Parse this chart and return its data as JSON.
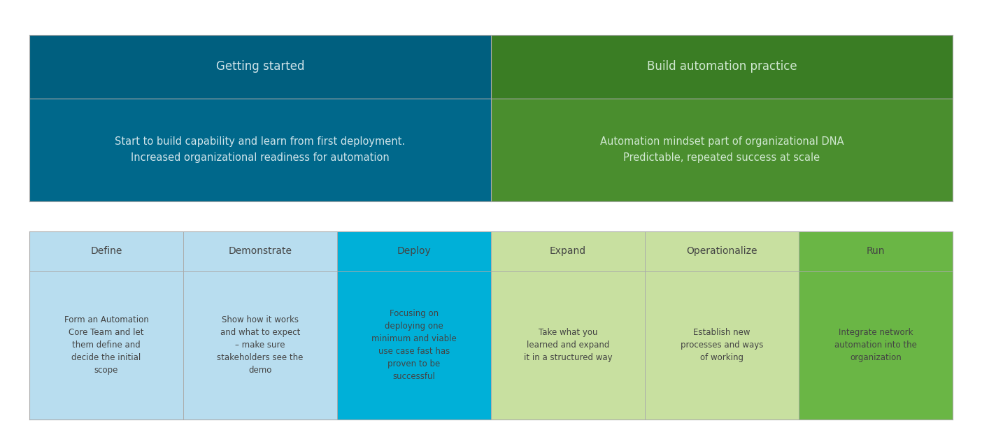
{
  "bg_color": "#ffffff",
  "top_section": {
    "phases": [
      {
        "label": "Getting started",
        "description": "Start to build capability and learn from first deployment.\nIncreased organizational readiness for automation",
        "header_color": "#005f7f",
        "body_color": "#00688b",
        "text_color": "#d0e4ea"
      },
      {
        "label": "Build automation practice",
        "description": "Automation mindset part of organizational DNA\nPredictable, repeated success at scale",
        "header_color": "#3a7d24",
        "body_color": "#4a8e2e",
        "text_color": "#d0e8d0"
      }
    ]
  },
  "bottom_section": {
    "steps": [
      {
        "title": "Define",
        "description": "Form an Automation\nCore Team and let\nthem define and\ndecide the initial\nscope",
        "color": "#b8ddef",
        "title_color": "#444444",
        "desc_color": "#444444"
      },
      {
        "title": "Demonstrate",
        "description": "Show how it works\nand what to expect\n– make sure\nstakeholders see the\ndemo",
        "color": "#b8ddef",
        "title_color": "#444444",
        "desc_color": "#444444"
      },
      {
        "title": "Deploy",
        "description": "Focusing on\ndeploying one\nminimum and viable\nuse case fast has\nproven to be\nsuccessful",
        "color": "#00b0d8",
        "title_color": "#444444",
        "desc_color": "#444444"
      },
      {
        "title": "Expand",
        "description": "Take what you\nlearned and expand\nit in a structured way",
        "color": "#c8e0a0",
        "title_color": "#444444",
        "desc_color": "#444444"
      },
      {
        "title": "Operationalize",
        "description": "Establish new\nprocesses and ways\nof working",
        "color": "#c8e0a0",
        "title_color": "#444444",
        "desc_color": "#444444"
      },
      {
        "title": "Run",
        "description": "Integrate network\nautomation into the\norganization",
        "color": "#6ab645",
        "title_color": "#444444",
        "desc_color": "#444444"
      }
    ]
  },
  "line_color": "#aaaaaa",
  "box_edge_color": "#aaaaaa"
}
